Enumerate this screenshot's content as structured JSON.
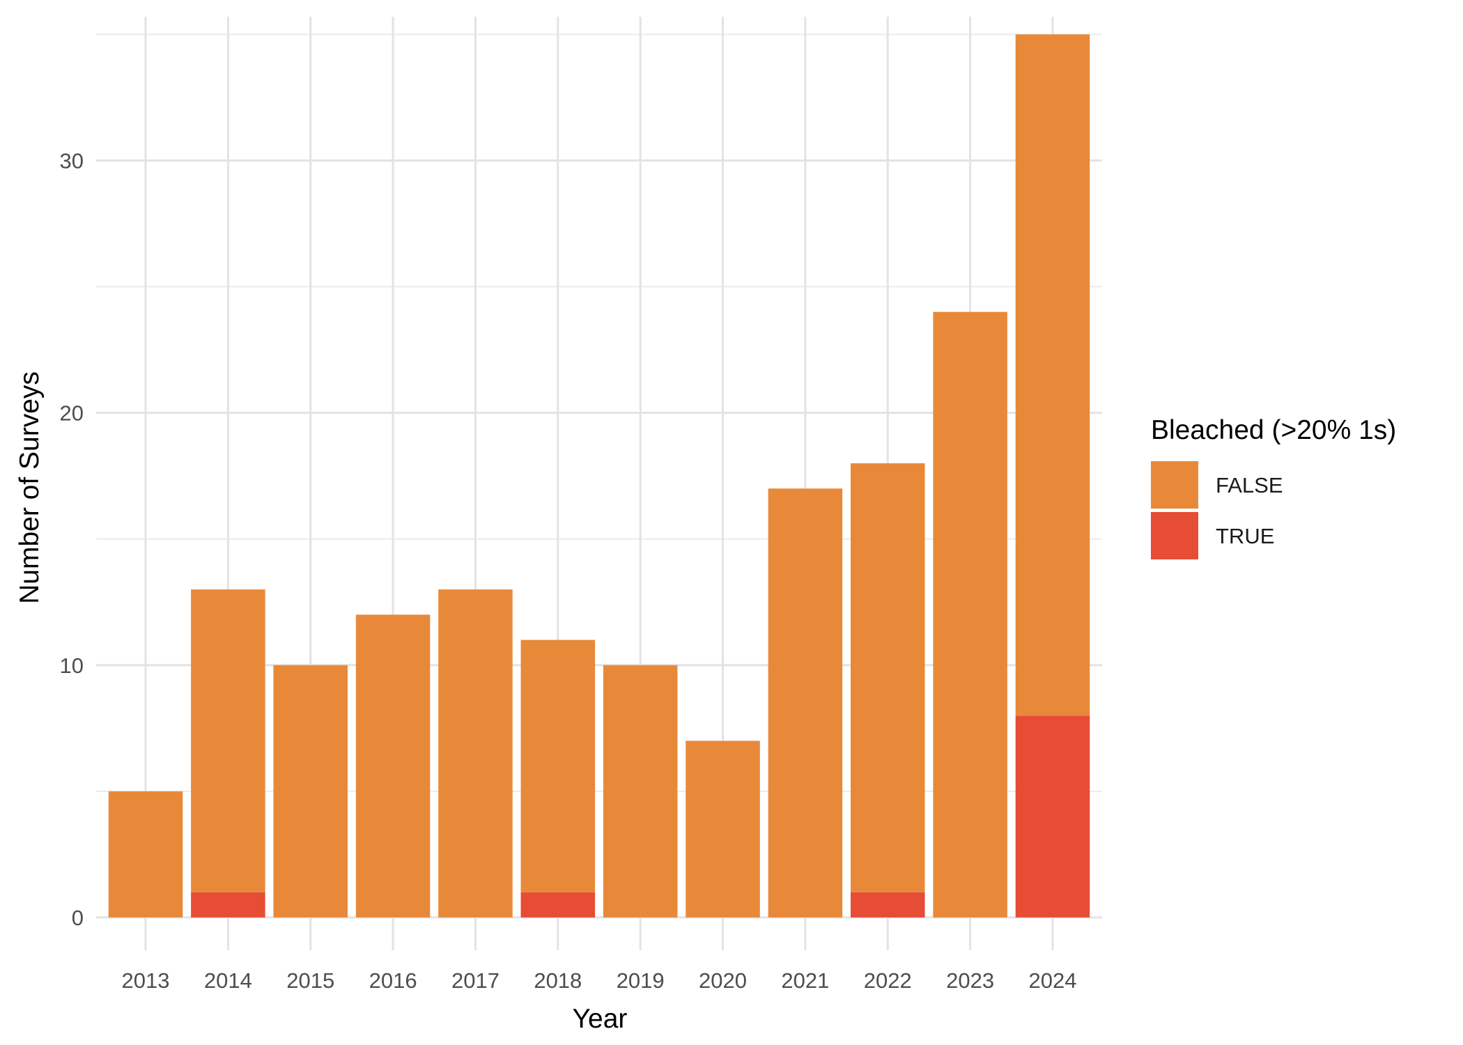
{
  "chart_data": {
    "type": "bar",
    "stacked": true,
    "categories": [
      "2013",
      "2014",
      "2015",
      "2016",
      "2017",
      "2018",
      "2019",
      "2020",
      "2021",
      "2022",
      "2023",
      "2024"
    ],
    "series": [
      {
        "name": "FALSE",
        "color": "#E8893A",
        "values": [
          5,
          12,
          10,
          12,
          13,
          10,
          10,
          7,
          17,
          17,
          24,
          27
        ]
      },
      {
        "name": "TRUE",
        "color": "#E74C35",
        "values": [
          0,
          1,
          0,
          0,
          0,
          1,
          0,
          0,
          0,
          1,
          0,
          8
        ]
      }
    ],
    "xlabel": "Year",
    "ylabel": "Number of Surveys",
    "ylim": [
      -1.3,
      35.7
    ],
    "yticks": [
      0,
      10,
      20,
      30
    ],
    "legend": {
      "title": "Bleached (>20% 1s)",
      "position": "right"
    },
    "grid": true
  }
}
